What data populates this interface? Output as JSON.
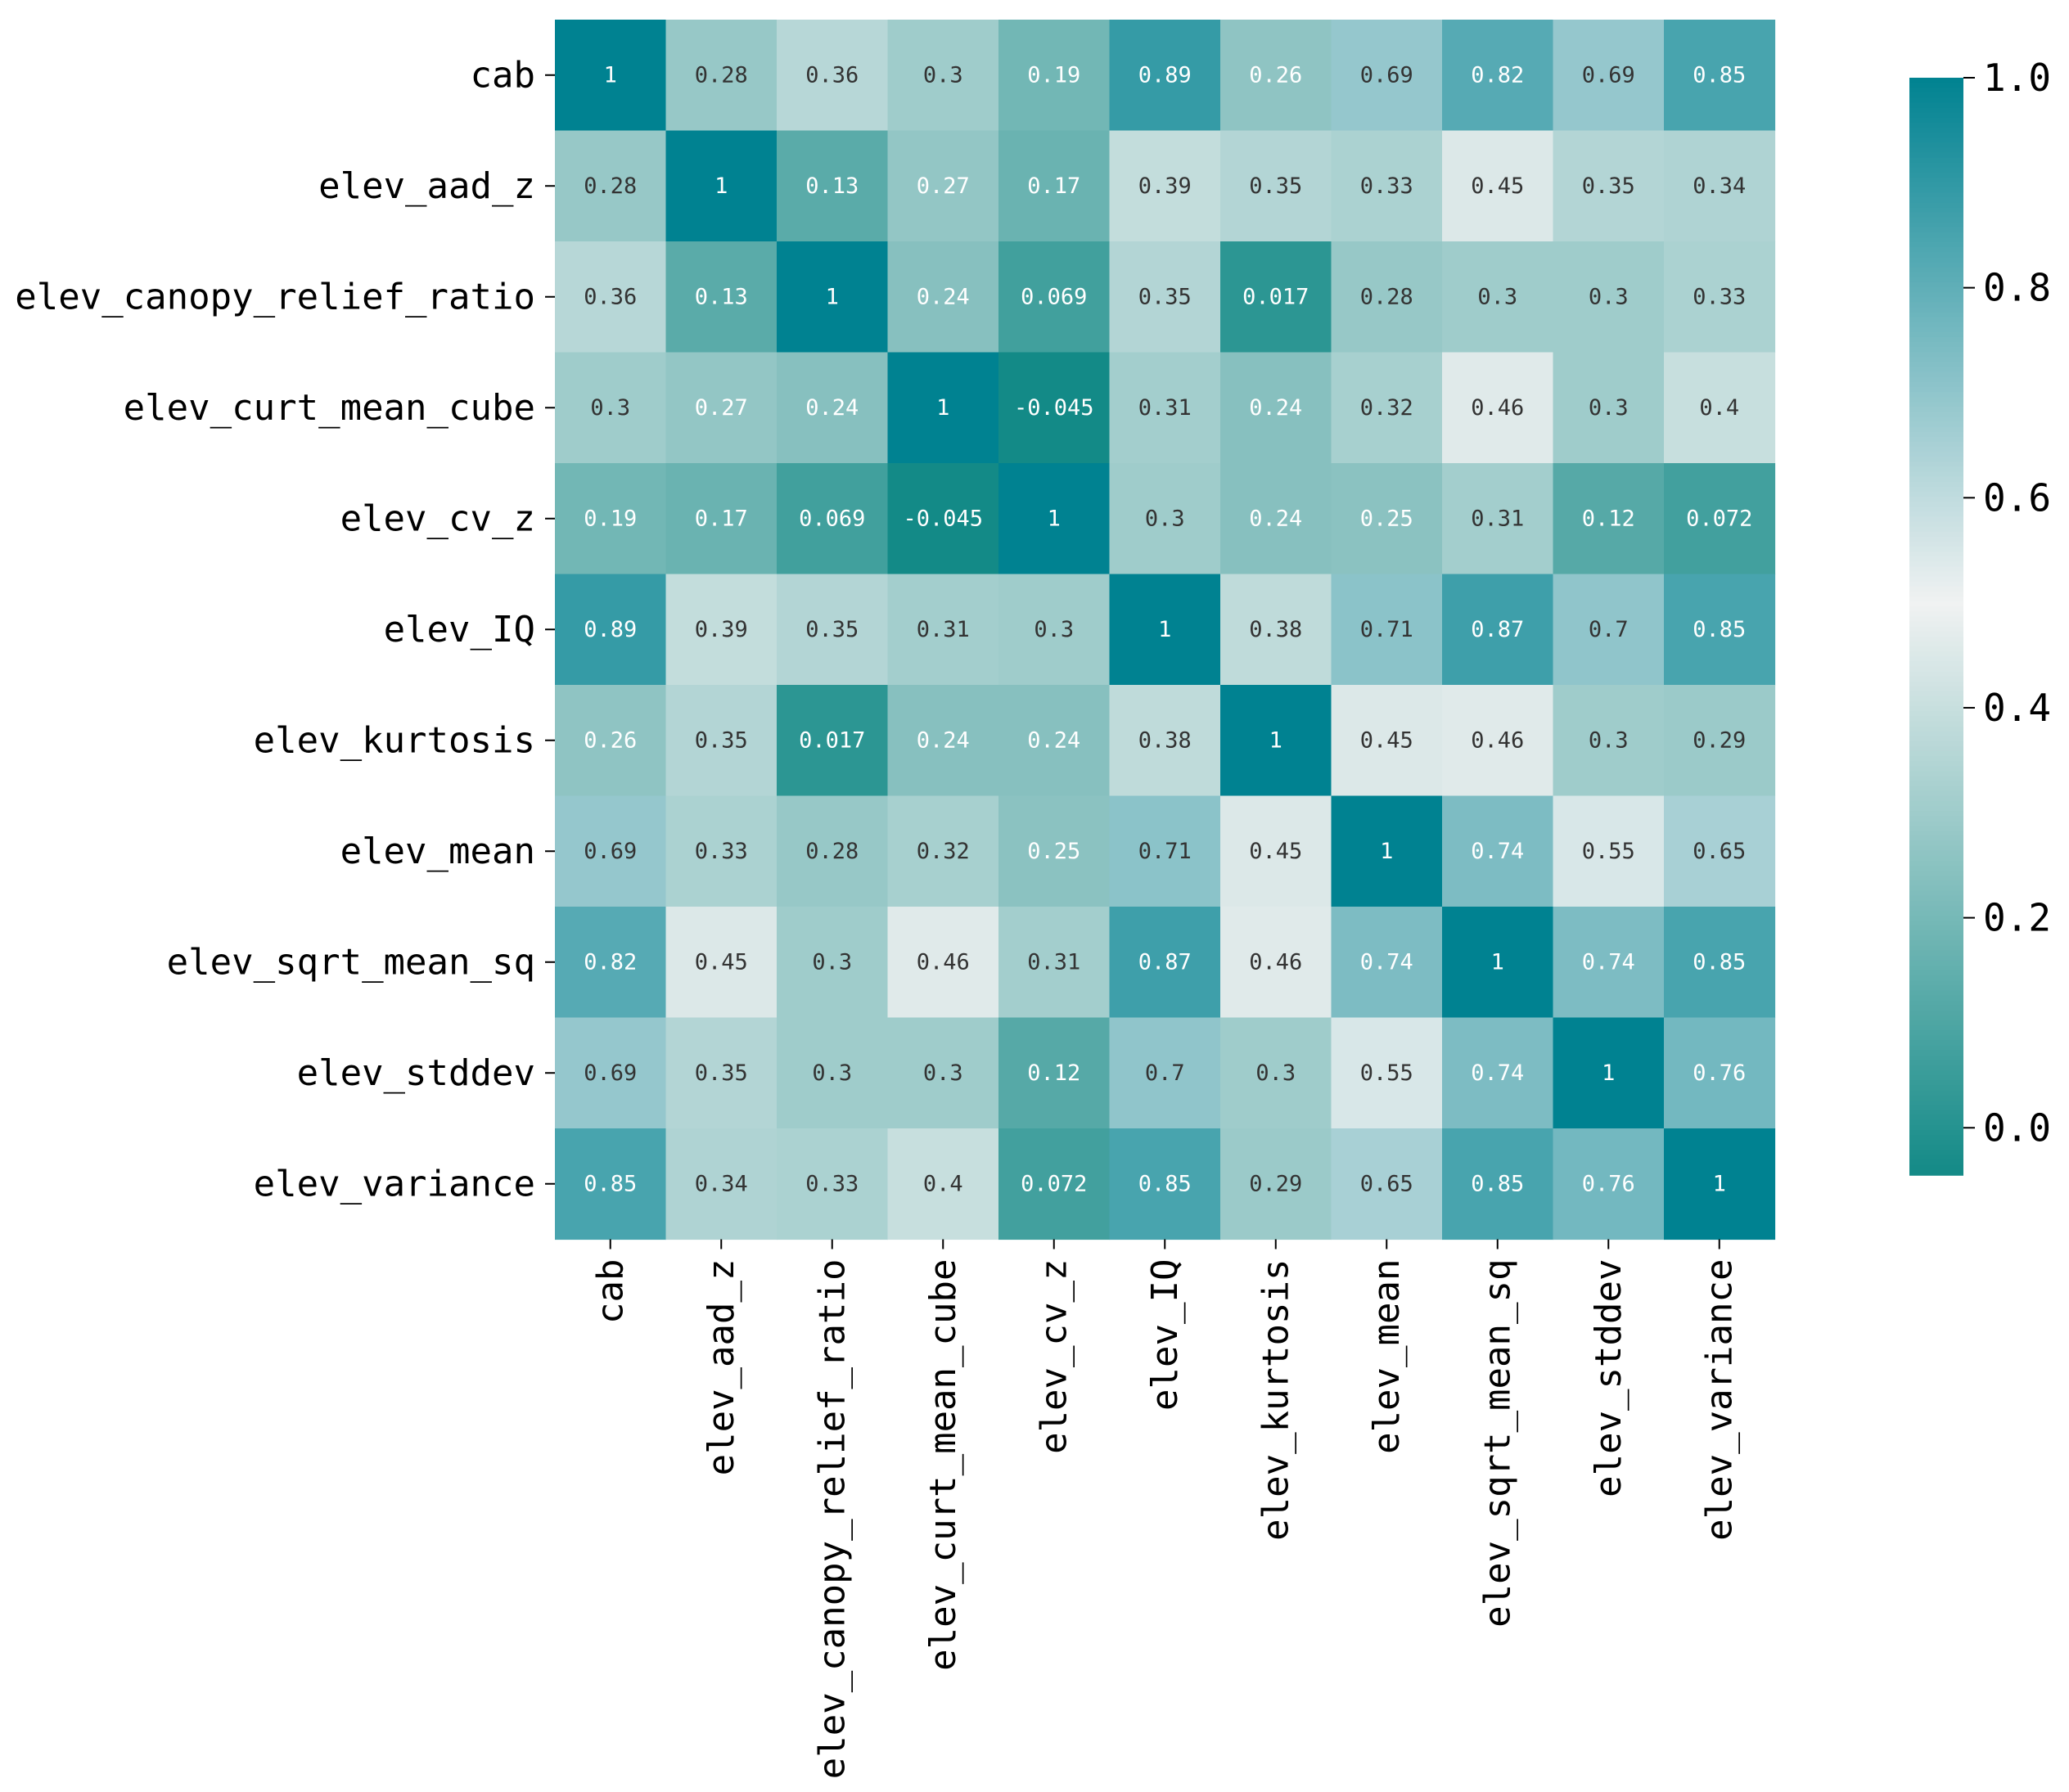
{
  "chart_data": {
    "type": "heatmap",
    "title": "",
    "xlabel": "",
    "ylabel": "",
    "rows": [
      "cab",
      "elev_aad_z",
      "elev_canopy_relief_ratio",
      "elev_curt_mean_cube",
      "elev_cv_z",
      "elev_IQ",
      "elev_kurtosis",
      "elev_mean",
      "elev_sqrt_mean_sq",
      "elev_stddev",
      "elev_variance"
    ],
    "columns": [
      "cab",
      "elev_aad_z",
      "elev_canopy_relief_ratio",
      "elev_curt_mean_cube",
      "elev_cv_z",
      "elev_IQ",
      "elev_kurtosis",
      "elev_mean",
      "elev_sqrt_mean_sq",
      "elev_stddev",
      "elev_variance"
    ],
    "values": [
      [
        1,
        0.28,
        0.36,
        0.3,
        0.19,
        0.89,
        0.26,
        0.69,
        0.82,
        0.69,
        0.85
      ],
      [
        0.28,
        1,
        0.13,
        0.27,
        0.17,
        0.39,
        0.35,
        0.33,
        0.45,
        0.35,
        0.34
      ],
      [
        0.36,
        0.13,
        1,
        0.24,
        0.069,
        0.35,
        0.017,
        0.28,
        0.3,
        0.3,
        0.33
      ],
      [
        0.3,
        0.27,
        0.24,
        1,
        -0.045,
        0.31,
        0.24,
        0.32,
        0.46,
        0.3,
        0.4
      ],
      [
        0.19,
        0.17,
        0.069,
        -0.045,
        1,
        0.3,
        0.24,
        0.25,
        0.31,
        0.12,
        0.072
      ],
      [
        0.89,
        0.39,
        0.35,
        0.31,
        0.3,
        1,
        0.38,
        0.71,
        0.87,
        0.7,
        0.85
      ],
      [
        0.26,
        0.35,
        0.017,
        0.24,
        0.24,
        0.38,
        1,
        0.45,
        0.46,
        0.3,
        0.29
      ],
      [
        0.69,
        0.33,
        0.28,
        0.32,
        0.25,
        0.71,
        0.45,
        1,
        0.74,
        0.55,
        0.65
      ],
      [
        0.82,
        0.45,
        0.3,
        0.46,
        0.31,
        0.87,
        0.46,
        0.74,
        1,
        0.74,
        0.85
      ],
      [
        0.69,
        0.35,
        0.3,
        0.3,
        0.12,
        0.7,
        0.3,
        0.55,
        0.74,
        1,
        0.76
      ],
      [
        0.85,
        0.34,
        0.33,
        0.4,
        0.072,
        0.85,
        0.29,
        0.65,
        0.85,
        0.76,
        1
      ]
    ],
    "value_labels": [
      [
        "1",
        "0.28",
        "0.36",
        "0.3",
        "0.19",
        "0.89",
        "0.26",
        "0.69",
        "0.82",
        "0.69",
        "0.85"
      ],
      [
        "0.28",
        "1",
        "0.13",
        "0.27",
        "0.17",
        "0.39",
        "0.35",
        "0.33",
        "0.45",
        "0.35",
        "0.34"
      ],
      [
        "0.36",
        "0.13",
        "1",
        "0.24",
        "0.069",
        "0.35",
        "0.017",
        "0.28",
        "0.3",
        "0.3",
        "0.33"
      ],
      [
        "0.3",
        "0.27",
        "0.24",
        "1",
        "-0.045",
        "0.31",
        "0.24",
        "0.32",
        "0.46",
        "0.3",
        "0.4"
      ],
      [
        "0.19",
        "0.17",
        "0.069",
        "-0.045",
        "1",
        "0.3",
        "0.24",
        "0.25",
        "0.31",
        "0.12",
        "0.072"
      ],
      [
        "0.89",
        "0.39",
        "0.35",
        "0.31",
        "0.3",
        "1",
        "0.38",
        "0.71",
        "0.87",
        "0.7",
        "0.85"
      ],
      [
        "0.26",
        "0.35",
        "0.017",
        "0.24",
        "0.24",
        "0.38",
        "1",
        "0.45",
        "0.46",
        "0.3",
        "0.29"
      ],
      [
        "0.69",
        "0.33",
        "0.28",
        "0.32",
        "0.25",
        "0.71",
        "0.45",
        "1",
        "0.74",
        "0.55",
        "0.65"
      ],
      [
        "0.82",
        "0.45",
        "0.3",
        "0.46",
        "0.31",
        "0.87",
        "0.46",
        "0.74",
        "1",
        "0.74",
        "0.85"
      ],
      [
        "0.69",
        "0.35",
        "0.3",
        "0.3",
        "0.12",
        "0.7",
        "0.3",
        "0.55",
        "0.74",
        "1",
        "0.76"
      ],
      [
        "0.85",
        "0.34",
        "0.33",
        "0.4",
        "0.072",
        "0.85",
        "0.29",
        "0.65",
        "0.85",
        "0.76",
        "1"
      ]
    ],
    "color_range": [
      -0.045,
      1.0
    ],
    "colormap": {
      "low": "#138a87",
      "mid": "#f0f2f2",
      "high": "#008291",
      "mid_value": 0.5
    },
    "colorbar": {
      "ticks": [
        0.0,
        0.2,
        0.4,
        0.6,
        0.8,
        1.0
      ],
      "tick_labels": [
        "0.0",
        "0.2",
        "0.4",
        "0.6",
        "0.8",
        "1.0"
      ],
      "position": "right"
    },
    "annotation_text_color": "#ffffff",
    "annotation_text_color_dark": "#333333"
  }
}
